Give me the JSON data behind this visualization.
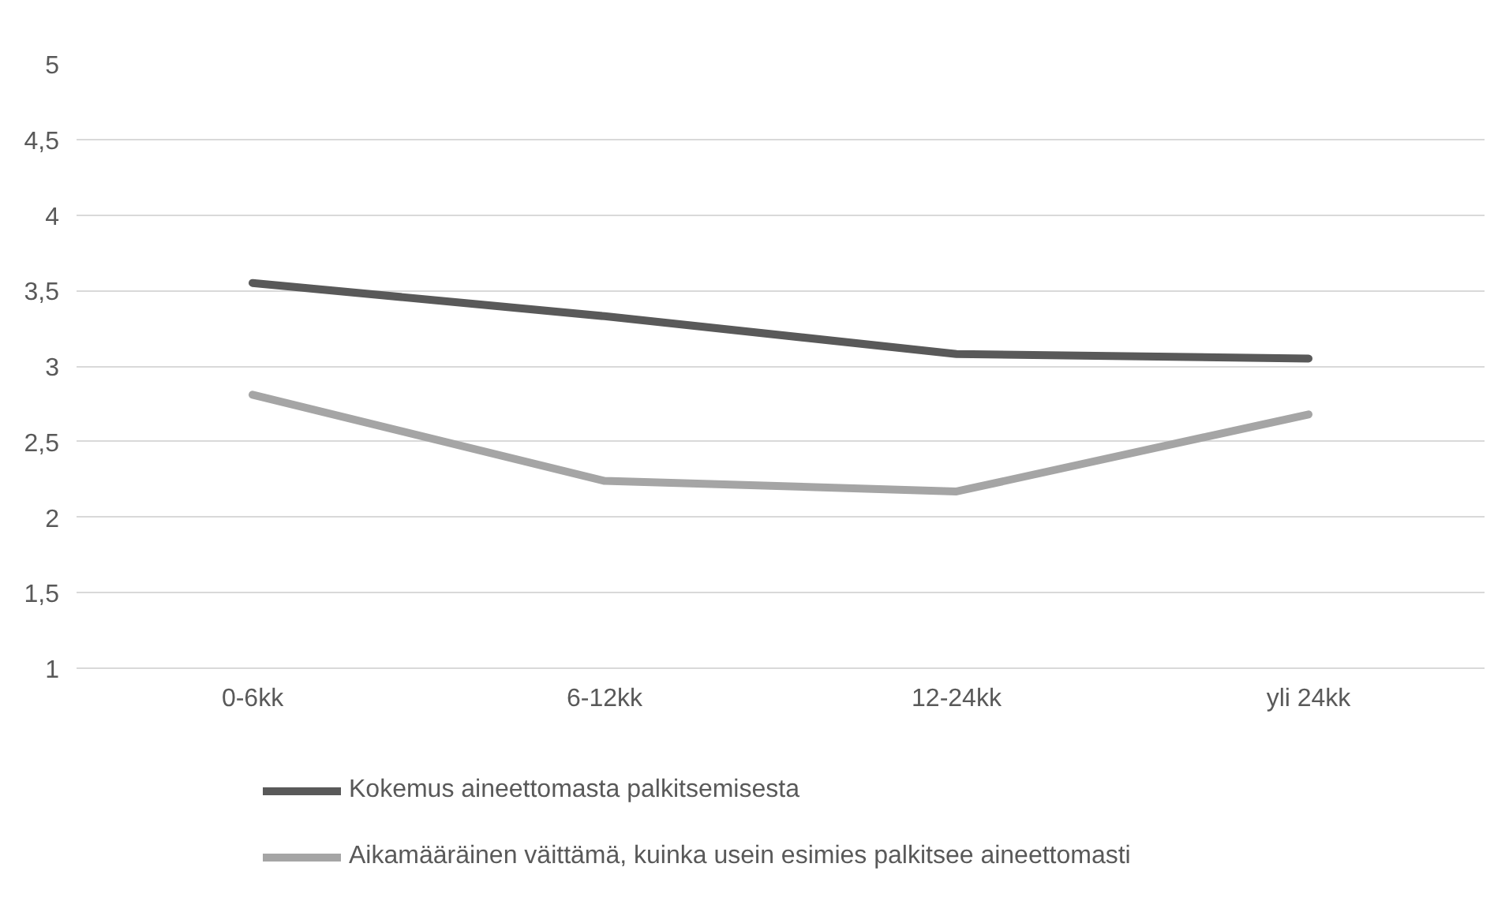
{
  "chart_data": {
    "type": "line",
    "categories": [
      "0-6kk",
      "6-12kk",
      "12-24kk",
      "yli 24kk"
    ],
    "series": [
      {
        "name": "Kokemus aineettomasta palkitsemisesta",
        "color": "#595959",
        "values": [
          3.55,
          3.33,
          3.08,
          3.05
        ]
      },
      {
        "name": "Aikamääräinen väittämä, kuinka usein esimies palkitsee aineettomasti",
        "color": "#a5a5a5",
        "values": [
          2.81,
          2.24,
          2.17,
          2.68
        ]
      }
    ],
    "ylim": [
      1,
      5
    ],
    "yticks": [
      1,
      {
        "value": 1.5,
        "label": "1,5"
      },
      2,
      {
        "value": 2.5,
        "label": "2,5"
      },
      3,
      {
        "value": 3.5,
        "label": "3,5"
      },
      4,
      {
        "value": 4.5,
        "label": "4,5"
      },
      5
    ],
    "grid": "y",
    "legend": "bottom",
    "marker": "none",
    "line_style": "solid"
  }
}
